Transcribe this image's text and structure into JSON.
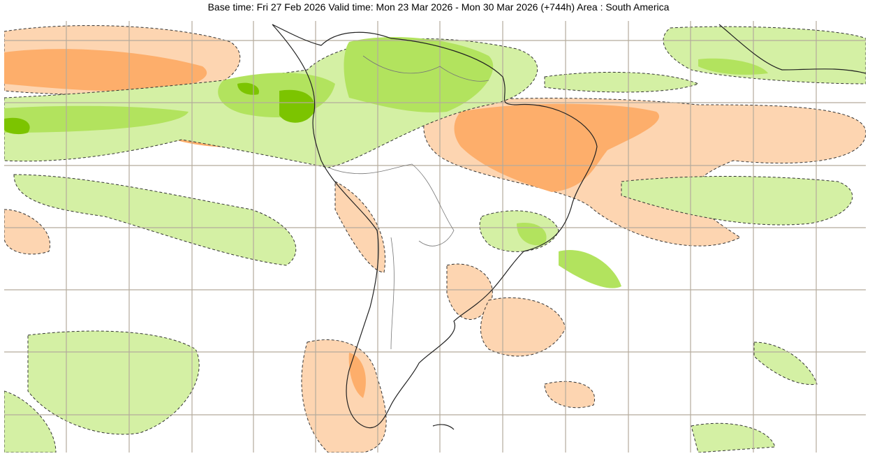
{
  "title": "Base time: Fri 27 Feb 2026 Valid time: Mon 23 Mar 2026 - Mon 30 Mar 2026 (+744h) Area : South America"
}
